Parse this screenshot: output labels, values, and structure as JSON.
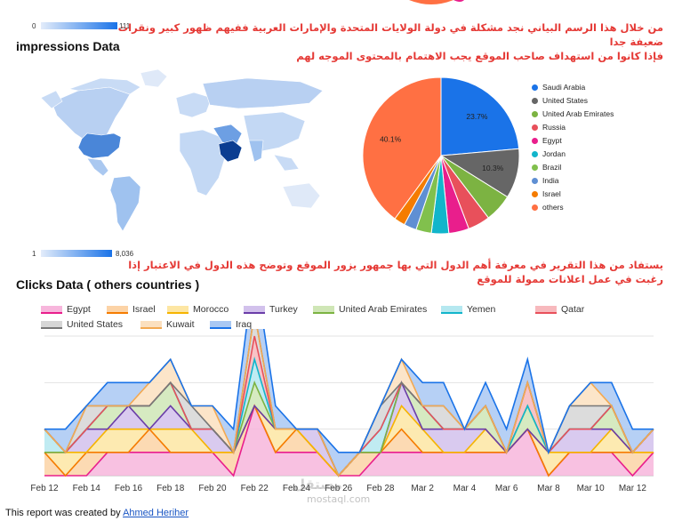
{
  "top_scale": {
    "min": "0",
    "max": "111"
  },
  "arabic_note_1": {
    "line1": "من خلال هذا الرسم البياني نجد مشكلة في دولة الولايات المتحدة والإمارات العربية ففيهم ظهور كبير ونقرات ضعيفة جدا",
    "line2": "فإذا كانوا من استهداف صاحب الموقع يجب الاهتمام بالمحتوى الموجه لهم"
  },
  "impressions": {
    "title": "impressions Data",
    "scale": {
      "min": "1",
      "max": "8,036"
    },
    "pie": {
      "slices": [
        {
          "label": "Saudi Arabia",
          "value": 23.7,
          "color": "#1a73e8",
          "show_label": true
        },
        {
          "label": "United States",
          "value": 10.3,
          "color": "#666666",
          "show_label": true
        },
        {
          "label": "United Arab Emirates",
          "value": 5.8,
          "color": "#7cb342",
          "show_label": false
        },
        {
          "label": "Russia",
          "value": 4.6,
          "color": "#e8505b",
          "show_label": false
        },
        {
          "label": "Egypt",
          "value": 4.2,
          "color": "#e91e8c",
          "show_label": false
        },
        {
          "label": "Jordan",
          "value": 3.6,
          "color": "#12b5cb",
          "show_label": false
        },
        {
          "label": "Brazil",
          "value": 3.2,
          "color": "#81c04d",
          "show_label": false
        },
        {
          "label": "India",
          "value": 2.6,
          "color": "#5f8fd3",
          "show_label": false
        },
        {
          "label": "Israel",
          "value": 2.3,
          "color": "#f57c00",
          "show_label": false
        },
        {
          "label": "others",
          "value": 40.1,
          "color": "#ff7043",
          "show_label": true
        }
      ],
      "legend_names": [
        "Saudi Arabia",
        "United States",
        "United Arab Emirates",
        "Russia",
        "Egypt",
        "Jordan",
        "Brazil",
        "India",
        "Israel",
        "others"
      ]
    }
  },
  "arabic_note_2": {
    "line1": "يستفاد من هذا التقرير في معرفة أهم الدول التي بها جمهور يزور الموقع وتوضح هذه الدول في الاعتبار إذا",
    "line2": "رغبت في عمل اعلانات ممولة للموقع"
  },
  "clicks": {
    "title": "Clicks Data ( others countries )"
  },
  "chart_data": {
    "type": "area",
    "title": "Clicks Data ( others countries )",
    "x_ticks": [
      "Feb 12",
      "Feb 14",
      "Feb 16",
      "Feb 18",
      "Feb 20",
      "Feb 22",
      "Feb 24",
      "Feb 26",
      "Feb 28",
      "Mar 2",
      "Mar 4",
      "Mar 6",
      "Mar 8",
      "Mar 10",
      "Mar 12"
    ],
    "x": [
      "Feb 12",
      "Feb 13",
      "Feb 14",
      "Feb 15",
      "Feb 16",
      "Feb 17",
      "Feb 18",
      "Feb 19",
      "Feb 20",
      "Feb 21",
      "Feb 22",
      "Feb 23",
      "Feb 24",
      "Feb 25",
      "Feb 26",
      "Feb 27",
      "Feb 28",
      "Mar 1",
      "Mar 2",
      "Mar 3",
      "Mar 4",
      "Mar 5",
      "Mar 6",
      "Mar 7",
      "Mar 8",
      "Mar 9",
      "Mar 10",
      "Mar 11",
      "Mar 12",
      "Mar 13"
    ],
    "stacked": true,
    "grid": true,
    "legend_position": "top",
    "series": [
      {
        "name": "Egypt",
        "color": "#e91e8c",
        "fill": "#f7b6dc",
        "values": [
          0,
          0,
          0,
          1,
          1,
          1,
          1,
          1,
          1,
          0,
          3,
          1,
          1,
          1,
          0,
          0,
          1,
          1,
          1,
          1,
          1,
          1,
          1,
          2,
          0,
          1,
          1,
          1,
          0,
          1
        ]
      },
      {
        "name": "Israel",
        "color": "#f57c00",
        "fill": "#fcd3a6",
        "values": [
          1,
          0,
          1,
          0,
          0,
          1,
          0,
          0,
          0,
          1,
          0,
          0,
          1,
          0,
          0,
          1,
          0,
          1,
          0,
          0,
          0,
          0,
          0,
          0,
          0,
          0,
          0,
          0,
          1,
          0
        ]
      },
      {
        "name": "Morocco",
        "color": "#f6b400",
        "fill": "#fde6a3",
        "values": [
          0,
          1,
          0,
          1,
          1,
          0,
          1,
          1,
          0,
          0,
          0,
          1,
          0,
          0,
          0,
          0,
          0,
          1,
          1,
          0,
          0,
          1,
          0,
          0,
          1,
          0,
          0,
          1,
          0,
          0
        ]
      },
      {
        "name": "Turkey",
        "color": "#6a3da8",
        "fill": "#d2c1ec",
        "values": [
          0,
          0,
          1,
          0,
          1,
          0,
          1,
          0,
          1,
          0,
          0,
          0,
          0,
          1,
          0,
          0,
          0,
          1,
          0,
          1,
          1,
          0,
          0,
          0,
          0,
          1,
          1,
          0,
          0,
          1
        ]
      },
      {
        "name": "United Arab Emirates",
        "color": "#7cb342",
        "fill": "#cfe6b6",
        "values": [
          0,
          0,
          0,
          1,
          0,
          1,
          1,
          0,
          0,
          0,
          1,
          0,
          0,
          0,
          0,
          0,
          0,
          0,
          1,
          0,
          0,
          1,
          0,
          1,
          0,
          0,
          0,
          1,
          0,
          0
        ]
      },
      {
        "name": "Yemen",
        "color": "#12b5cb",
        "fill": "#b5e8f0",
        "values": [
          1,
          0,
          0,
          0,
          0,
          0,
          0,
          0,
          0,
          0,
          1,
          0,
          0,
          0,
          0,
          0,
          1,
          0,
          0,
          0,
          0,
          0,
          0,
          0,
          0,
          0,
          0,
          0,
          0,
          0
        ]
      },
      {
        "name": "Qatar",
        "color": "#e8505b",
        "fill": "#f7b9bd",
        "values": [
          0,
          0,
          0,
          0,
          0,
          0,
          0,
          0,
          0,
          0,
          1,
          0,
          0,
          0,
          0,
          0,
          0,
          0,
          0,
          0,
          0,
          0,
          0,
          1,
          0,
          0,
          0,
          0,
          0,
          0
        ]
      },
      {
        "name": "United States",
        "color": "#777777",
        "fill": "#d6d6d6",
        "values": [
          0,
          0,
          1,
          0,
          0,
          0,
          0,
          1,
          0,
          0,
          1,
          0,
          0,
          0,
          0,
          0,
          1,
          0,
          0,
          1,
          0,
          0,
          0,
          0,
          0,
          1,
          1,
          0,
          0,
          0
        ]
      },
      {
        "name": "Kuwait",
        "color": "#f3a952",
        "fill": "#fbe0bf",
        "values": [
          0,
          0,
          0,
          0,
          0,
          1,
          1,
          0,
          1,
          0,
          0,
          0,
          0,
          0,
          0,
          0,
          0,
          1,
          0,
          0,
          0,
          0,
          0,
          0,
          0,
          0,
          1,
          0,
          0,
          0
        ]
      },
      {
        "name": "Iraq",
        "color": "#1a73e8",
        "fill": "#a9c8f3",
        "values": [
          0,
          1,
          0,
          1,
          1,
          0,
          0,
          0,
          0,
          1,
          2,
          1,
          0,
          0,
          1,
          0,
          0,
          0,
          1,
          1,
          0,
          1,
          1,
          1,
          0,
          0,
          0,
          1,
          1,
          0
        ]
      }
    ]
  },
  "footer": {
    "prefix": "This report was created by ",
    "author": "Ahmed Heriher"
  },
  "watermark": {
    "main": "مستقل",
    "sub": "mostaql.com"
  },
  "map_colors": {
    "ocean": "#ffffff",
    "land_low": "#d6e4f7",
    "land_mid": "#9fc2ef",
    "land_high": "#3a7bd5",
    "saudi": "#0b3d91",
    "usa": "#4a86d8"
  }
}
